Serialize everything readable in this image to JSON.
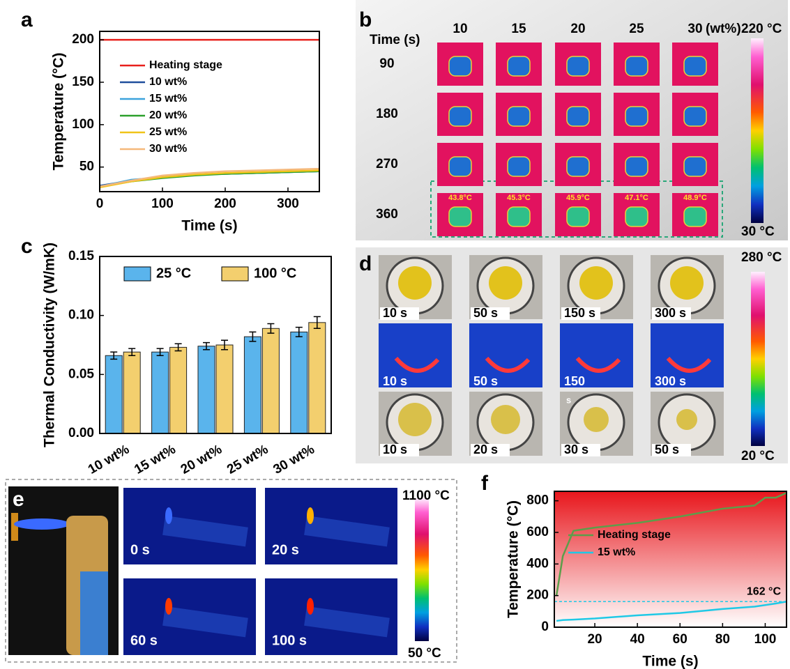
{
  "chart_data": [
    {
      "type": "line",
      "label": "a",
      "xlabel": "Time (s)",
      "ylabel": "Temperature (°C)",
      "x": [
        0,
        50,
        100,
        150,
        200,
        250,
        300,
        350
      ],
      "series": [
        {
          "name": "Heating stage",
          "color": "#e8201c",
          "values": [
            200,
            200,
            200,
            200,
            200,
            200,
            200,
            200
          ]
        },
        {
          "name": "10 wt%",
          "color": "#1f4e9c",
          "values": [
            28,
            34,
            38,
            41,
            42,
            43,
            44,
            45
          ]
        },
        {
          "name": "15 wt%",
          "color": "#3ba3dc",
          "values": [
            27,
            35,
            38,
            41,
            42,
            43,
            44,
            45
          ]
        },
        {
          "name": "20 wt%",
          "color": "#2ca02c",
          "values": [
            27,
            33,
            37,
            40,
            42,
            43,
            44,
            45
          ]
        },
        {
          "name": "25 wt%",
          "color": "#f0c419",
          "values": [
            26,
            33,
            38,
            41,
            43,
            44,
            45,
            46
          ]
        },
        {
          "name": "30 wt%",
          "color": "#f5b87a",
          "values": [
            27,
            34,
            40,
            43,
            45,
            46,
            47,
            48
          ]
        }
      ],
      "xlim": [
        0,
        350
      ],
      "xticks": [
        0,
        100,
        200,
        300
      ],
      "ylim": [
        21,
        210
      ],
      "yticks": [
        50,
        100,
        150,
        200
      ],
      "legend": "upper center"
    },
    {
      "type": "bar",
      "label": "c",
      "ylabel": "Thermal Conductivity (W/mK)",
      "categories": [
        "10 wt%",
        "15 wt%",
        "20 wt%",
        "25 wt%",
        "30 wt%"
      ],
      "series": [
        {
          "name": "25 °C",
          "color": "#5ab4ec",
          "values": [
            0.066,
            0.069,
            0.074,
            0.082,
            0.086
          ],
          "errors": [
            0.003,
            0.003,
            0.003,
            0.004,
            0.004
          ]
        },
        {
          "name": "100 °C",
          "color": "#f3cf6e",
          "values": [
            0.069,
            0.073,
            0.075,
            0.089,
            0.094
          ],
          "errors": [
            0.003,
            0.003,
            0.004,
            0.004,
            0.005
          ]
        }
      ],
      "ylim": [
        0,
        0.15
      ],
      "yticks": [
        {
          "value": 0,
          "label": "0.00"
        },
        0.05,
        {
          "value": 0.1,
          "label": "0.10"
        },
        0.15
      ],
      "legend": "upper left"
    },
    {
      "type": "line",
      "label": "f",
      "xlabel": "Time (s)",
      "ylabel": "Temperature (°C)",
      "x": [
        2,
        5,
        10,
        20,
        40,
        60,
        80,
        95,
        100,
        105,
        110
      ],
      "series": [
        {
          "name": "Heating stage",
          "color": "#5c9e4a",
          "values": [
            200,
            450,
            610,
            630,
            660,
            700,
            750,
            770,
            820,
            820,
            850
          ]
        },
        {
          "name": "15 wt%",
          "color": "#1fc9e6",
          "values": [
            40,
            45,
            48,
            55,
            75,
            90,
            115,
            130,
            140,
            150,
            162
          ]
        }
      ],
      "xlim": [
        1,
        110
      ],
      "xticks": [
        20,
        40,
        60,
        80,
        100
      ],
      "ylim": [
        0,
        860
      ],
      "yticks": [
        0,
        200,
        400,
        600,
        800
      ],
      "ref_line": {
        "value": 162,
        "label": "162 °C"
      },
      "legend": "center left"
    }
  ],
  "panels": {
    "b": {
      "label": "b",
      "unit": "(wt%)",
      "time_header": "Time  (s)",
      "columns": [
        "10",
        "15",
        "20",
        "25",
        "30"
      ],
      "rows": [
        "90",
        "180",
        "270",
        "360"
      ],
      "temps": [
        "43.8°C",
        "45.3°C",
        "45.9°C",
        "47.1°C",
        "48.9°C"
      ],
      "colorbar": [
        "220 °C",
        "30 °C"
      ]
    },
    "d": {
      "label": "d",
      "captions": [
        [
          "10 s",
          "50 s",
          "150 s",
          "300 s"
        ],
        [
          "10 s",
          "50 s",
          "150",
          "300 s"
        ],
        [
          "10 s",
          "20 s",
          "30 s",
          "50 s"
        ]
      ],
      "note": "s",
      "colorbar": [
        "280 °C",
        "20 °C"
      ]
    },
    "e": {
      "label": "e",
      "captions": [
        "0 s",
        "20 s",
        "60 s",
        "100 s"
      ],
      "colorbar": [
        "1100 °C",
        "50 °C"
      ]
    }
  }
}
